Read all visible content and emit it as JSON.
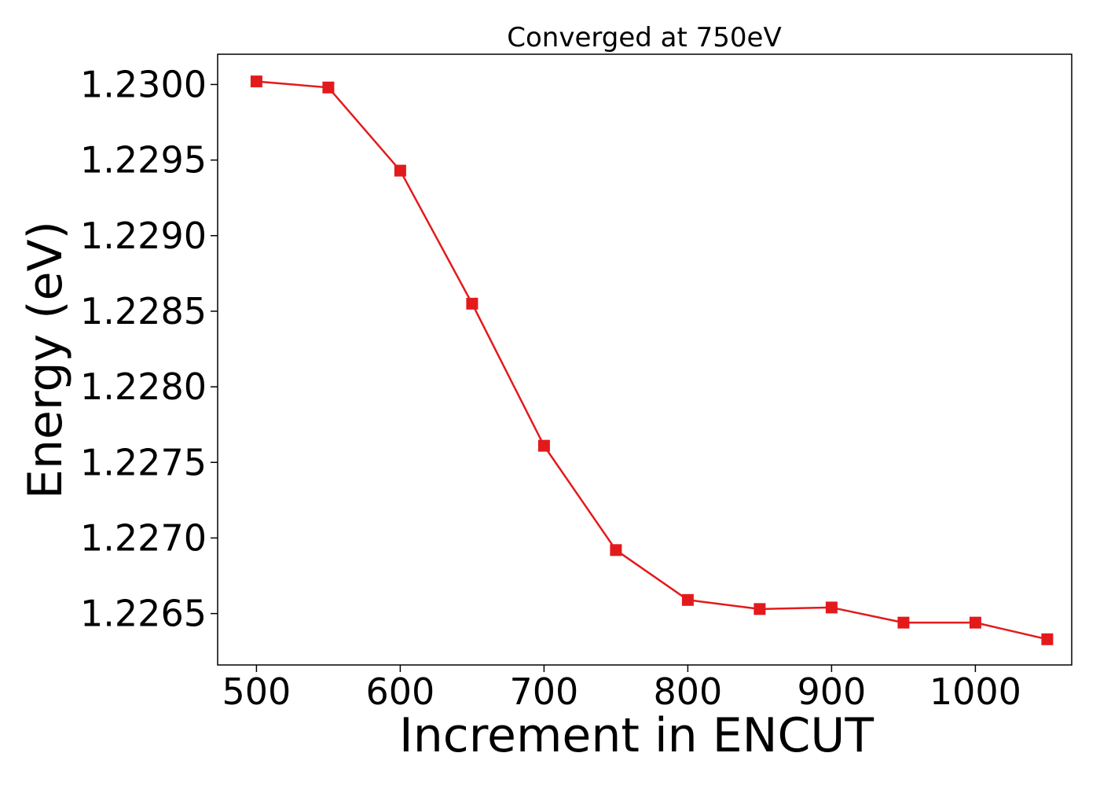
{
  "chart_data": {
    "type": "line",
    "title": "Converged at 750eV",
    "xlabel": "Increment in ENCUT",
    "ylabel": "Energy (eV)",
    "xlim": [
      473,
      1067
    ],
    "ylim": [
      1.22616,
      1.2302
    ],
    "x_ticks": [
      500,
      600,
      700,
      800,
      900,
      1000
    ],
    "x_tick_labels": [
      "500",
      "600",
      "700",
      "800",
      "900",
      "1000"
    ],
    "y_ticks": [
      1.2265,
      1.227,
      1.2275,
      1.228,
      1.2285,
      1.229,
      1.2295,
      1.23
    ],
    "y_tick_labels": [
      "1.2265",
      "1.2270",
      "1.2275",
      "1.2280",
      "1.2285",
      "1.2290",
      "1.2295",
      "1.2300"
    ],
    "grid": false,
    "series": [
      {
        "color": "#e31a1c",
        "marker": "square",
        "x": [
          500,
          550,
          600,
          650,
          700,
          750,
          800,
          850,
          900,
          950,
          1000,
          1050
        ],
        "y": [
          1.23002,
          1.22998,
          1.22943,
          1.22855,
          1.22761,
          1.22692,
          1.22659,
          1.22653,
          1.22654,
          1.22644,
          1.22644,
          1.22633
        ]
      }
    ]
  }
}
